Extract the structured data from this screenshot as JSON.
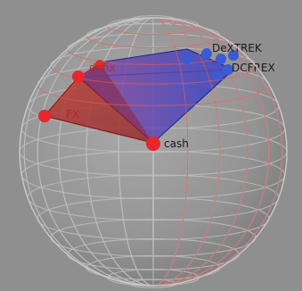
{
  "labels": {
    "cash": "cash",
    "blue_upper": "DeXTREK",
    "blue_lower": "DCFREX",
    "red_upper": "defix",
    "red_left": "FX"
  },
  "colors": {
    "background": "#8f8f8f",
    "sphere_wire": "#bdbdbd",
    "sphere_wire_front": "#d05a5a",
    "red_node": "#e8262c",
    "blue_node": "#3a5bd6",
    "red_hull": "#b8322e",
    "blue_hull": "#3a3fc4"
  }
}
